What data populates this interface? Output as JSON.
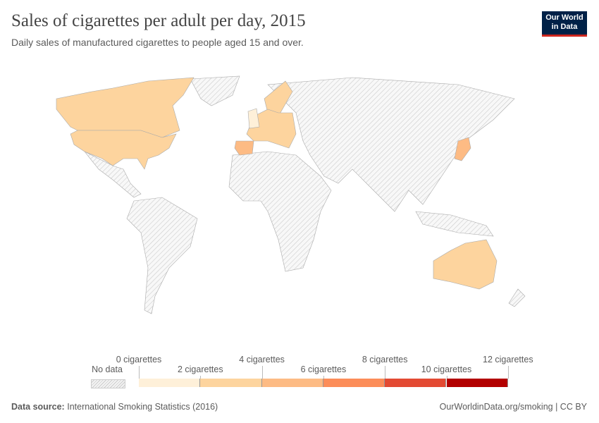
{
  "header": {
    "title": "Sales of cigarettes per adult per day, 2015",
    "subtitle": "Daily sales of manufactured cigarettes to people aged 15 and over."
  },
  "logo": {
    "text": "Our World in Data",
    "line1": "Our World",
    "line2": "in Data",
    "bg": "#002147",
    "accent": "#ce261e"
  },
  "legend": {
    "no_data_label": "No data",
    "tick_labels": [
      "0 cigarettes",
      "2 cigarettes",
      "4 cigarettes",
      "6 cigarettes",
      "8 cigarettes",
      "10 cigarettes",
      "12 cigarettes"
    ],
    "bin_colors": [
      "#fef0d9",
      "#fdd49e",
      "#fdbb84",
      "#fc8d59",
      "#e34a33",
      "#b30000"
    ]
  },
  "map": {
    "no_data_pattern": "hatched-gray",
    "regions_with_data": [
      {
        "name": "Canada",
        "bin": 1
      },
      {
        "name": "United States",
        "bin": 1
      },
      {
        "name": "Australia",
        "bin": 1
      },
      {
        "name": "Japan",
        "bin": 2
      },
      {
        "name": "Europe",
        "bin": 1
      },
      {
        "name": "Spain",
        "bin": 2
      },
      {
        "name": "United Kingdom",
        "bin": 0
      },
      {
        "name": "Scandinavia",
        "bin": 1
      }
    ]
  },
  "footer": {
    "source_label": "Data source:",
    "source": "International Smoking Statistics (2016)",
    "url": "OurWorldinData.org/smoking | CC BY"
  }
}
